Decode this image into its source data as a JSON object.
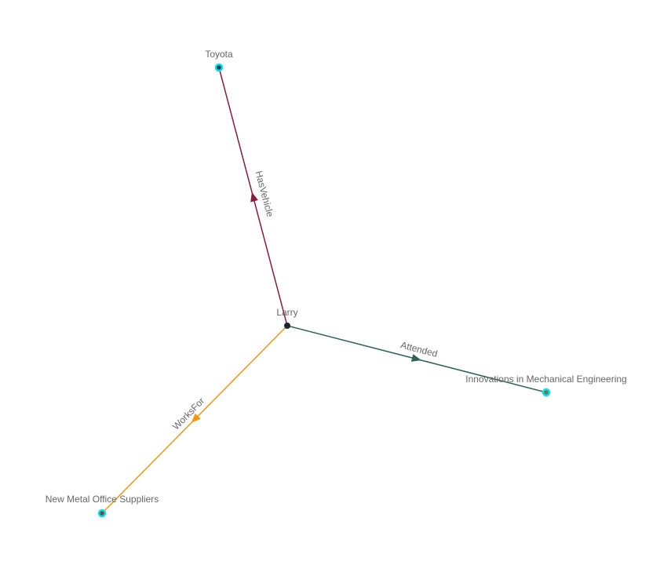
{
  "nodes": [
    {
      "id": "larry",
      "label": "Larry",
      "color": "#1c2536",
      "highlighted": false
    },
    {
      "id": "toyota",
      "label": "Toyota",
      "color": "#2f3a55",
      "highlighted": true
    },
    {
      "id": "innovations",
      "label": "Innovations in Mechanical Engineering",
      "color": "#7a6e55",
      "highlighted": true
    },
    {
      "id": "newmetal",
      "label": "New Metal Office Suppliers",
      "color": "#7a4545",
      "highlighted": true
    }
  ],
  "edges": [
    {
      "source": "larry",
      "target": "toyota",
      "label": "HasVehicle",
      "color": "#8b1a3c"
    },
    {
      "source": "larry",
      "target": "innovations",
      "label": "Attended",
      "color": "#2a6650"
    },
    {
      "source": "larry",
      "target": "newmetal",
      "label": "WorksFor",
      "color": "#f0960f"
    }
  ],
  "highlight_color": "#00e5ee"
}
